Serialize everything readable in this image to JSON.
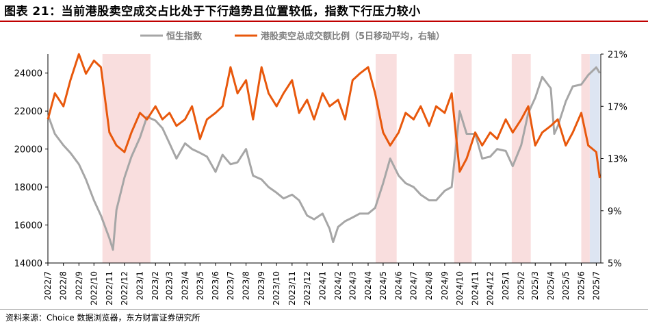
{
  "title": "图表 21：当前港股卖空成交占比处于下行趋势且位置较低，指数下行压力较小",
  "source": "资料来源：Choice 数据浏览器，东方财富证券研究所",
  "colors": {
    "hsi": "#a6a6a6",
    "short_ratio": "#e8580c",
    "highlight_pink": "#f9dede",
    "highlight_blue": "#dde5f2",
    "title_rule": "#c00000"
  },
  "chart_data": {
    "type": "line",
    "title": "",
    "xlabel": "",
    "ylabel": "",
    "ylabel_right": "",
    "legend_position": "top",
    "grid": false,
    "ylim": [
      14000,
      25000
    ],
    "ylim_right": [
      0.05,
      0.21
    ],
    "yticks": [
      14000,
      16000,
      18000,
      20000,
      22000,
      24000
    ],
    "yticks_right": [
      "5%",
      "9%",
      "13%",
      "17%",
      "21%"
    ],
    "yticks_right_values": [
      0.05,
      0.09,
      0.13,
      0.17,
      0.21
    ],
    "x_tick_labels": [
      "2022/7",
      "2022/8",
      "2022/9",
      "2022/10",
      "2022/11",
      "2022/12",
      "2023/1",
      "2023/2",
      "2023/3",
      "2023/4",
      "2023/5",
      "2023/6",
      "2023/7",
      "2023/8",
      "2023/9",
      "2023/10",
      "2023/11",
      "2023/12",
      "2024/1",
      "2024/2",
      "2024/3",
      "2024/4",
      "2024/5",
      "2024/6",
      "2024/7",
      "2024/8",
      "2024/9",
      "2024/10",
      "2024/11",
      "2024/12",
      "2025/1",
      "2025/2",
      "2025/3",
      "2025/4",
      "2025/5",
      "2025/6",
      "2025/7"
    ],
    "x_start": "2022/7",
    "highlight_periods": [
      {
        "start": "2022/10/18",
        "end": "2023/1/22",
        "color": "pink"
      },
      {
        "start": "2024/4/16",
        "end": "2024/5/28",
        "color": "pink"
      },
      {
        "start": "2024/9/20",
        "end": "2024/10/25",
        "color": "pink"
      },
      {
        "start": "2025/1/13",
        "end": "2025/2/20",
        "color": "pink"
      },
      {
        "start": "2025/6/1",
        "end": "2025/6/18",
        "color": "pink"
      },
      {
        "start": "2025/6/18",
        "end": "2025/7/8",
        "color": "blue"
      }
    ],
    "series": [
      {
        "name": "恒生指数",
        "axis": "left",
        "x": [
          "2022/7/1",
          "2022/7/15",
          "2022/8/1",
          "2022/8/15",
          "2022/9/1",
          "2022/9/15",
          "2022/10/1",
          "2022/10/15",
          "2022/11/1",
          "2022/11/8",
          "2022/11/15",
          "2022/12/1",
          "2022/12/15",
          "2023/1/1",
          "2023/1/15",
          "2023/2/1",
          "2023/2/15",
          "2023/3/1",
          "2023/3/15",
          "2023/4/1",
          "2023/4/15",
          "2023/5/1",
          "2023/5/15",
          "2023/6/1",
          "2023/6/15",
          "2023/7/1",
          "2023/7/15",
          "2023/8/1",
          "2023/8/15",
          "2023/9/1",
          "2023/9/15",
          "2023/10/1",
          "2023/10/15",
          "2023/11/1",
          "2023/11/15",
          "2023/12/1",
          "2023/12/15",
          "2024/1/1",
          "2024/1/15",
          "2024/1/22",
          "2024/2/1",
          "2024/2/15",
          "2024/3/1",
          "2024/3/15",
          "2024/4/1",
          "2024/4/15",
          "2024/5/1",
          "2024/5/15",
          "2024/6/1",
          "2024/6/15",
          "2024/7/1",
          "2024/7/15",
          "2024/8/1",
          "2024/8/15",
          "2024/9/1",
          "2024/9/15",
          "2024/10/1",
          "2024/10/15",
          "2024/11/1",
          "2024/11/15",
          "2024/12/1",
          "2024/12/15",
          "2025/1/1",
          "2025/1/15",
          "2025/2/1",
          "2025/2/15",
          "2025/3/1",
          "2025/3/15",
          "2025/4/1",
          "2025/4/8",
          "2025/4/15",
          "2025/5/1",
          "2025/5/15",
          "2025/6/1",
          "2025/6/15",
          "2025/7/1",
          "2025/7/8"
        ],
        "values": [
          21800,
          20800,
          20200,
          19800,
          19200,
          18400,
          17300,
          16500,
          15300,
          14700,
          16800,
          18500,
          19600,
          20600,
          21700,
          21500,
          21100,
          20300,
          19500,
          20300,
          20000,
          19800,
          19600,
          18800,
          19700,
          19200,
          19300,
          20000,
          18600,
          18400,
          18000,
          17700,
          17400,
          17600,
          17300,
          16500,
          16300,
          16600,
          15800,
          15100,
          15900,
          16200,
          16400,
          16600,
          16600,
          16900,
          18200,
          19500,
          18600,
          18200,
          18000,
          17600,
          17300,
          17300,
          17800,
          18000,
          22000,
          20800,
          20800,
          19500,
          19600,
          20000,
          19900,
          19100,
          20200,
          21900,
          22700,
          23800,
          23200,
          20800,
          21200,
          22500,
          23300,
          23400,
          23900,
          24300,
          24000
        ]
      },
      {
        "name": "港股卖空总成交额比例（5日移动平均，右轴）",
        "axis": "right",
        "x": [
          "2022/7/1",
          "2022/7/15",
          "2022/8/1",
          "2022/8/15",
          "2022/9/1",
          "2022/9/15",
          "2022/10/1",
          "2022/10/15",
          "2022/11/1",
          "2022/11/15",
          "2022/12/1",
          "2022/12/15",
          "2023/1/1",
          "2023/1/15",
          "2023/2/1",
          "2023/2/15",
          "2023/3/1",
          "2023/3/15",
          "2023/4/1",
          "2023/4/15",
          "2023/5/1",
          "2023/5/15",
          "2023/6/1",
          "2023/6/15",
          "2023/7/1",
          "2023/7/15",
          "2023/8/1",
          "2023/8/15",
          "2023/9/1",
          "2023/9/15",
          "2023/10/1",
          "2023/10/15",
          "2023/11/1",
          "2023/11/15",
          "2023/12/1",
          "2023/12/15",
          "2024/1/1",
          "2024/1/15",
          "2024/2/1",
          "2024/2/15",
          "2024/3/1",
          "2024/3/15",
          "2024/4/1",
          "2024/4/15",
          "2024/5/1",
          "2024/5/15",
          "2024/6/1",
          "2024/6/15",
          "2024/7/1",
          "2024/7/15",
          "2024/8/1",
          "2024/8/15",
          "2024/9/1",
          "2024/9/15",
          "2024/10/1",
          "2024/10/15",
          "2024/11/1",
          "2024/11/15",
          "2024/12/1",
          "2024/12/15",
          "2025/1/1",
          "2025/1/15",
          "2025/2/1",
          "2025/2/15",
          "2025/3/1",
          "2025/3/15",
          "2025/4/1",
          "2025/4/15",
          "2025/5/1",
          "2025/5/15",
          "2025/6/1",
          "2025/6/15",
          "2025/7/1",
          "2025/7/8"
        ],
        "values": [
          0.16,
          0.18,
          0.17,
          0.19,
          0.21,
          0.195,
          0.205,
          0.2,
          0.15,
          0.14,
          0.135,
          0.15,
          0.165,
          0.16,
          0.17,
          0.16,
          0.165,
          0.155,
          0.16,
          0.17,
          0.145,
          0.16,
          0.165,
          0.17,
          0.2,
          0.18,
          0.19,
          0.16,
          0.2,
          0.18,
          0.17,
          0.18,
          0.19,
          0.165,
          0.175,
          0.16,
          0.18,
          0.17,
          0.175,
          0.16,
          0.19,
          0.195,
          0.2,
          0.18,
          0.15,
          0.14,
          0.15,
          0.165,
          0.16,
          0.17,
          0.155,
          0.17,
          0.165,
          0.18,
          0.12,
          0.13,
          0.15,
          0.14,
          0.15,
          0.145,
          0.16,
          0.15,
          0.16,
          0.17,
          0.14,
          0.15,
          0.155,
          0.16,
          0.14,
          0.15,
          0.165,
          0.14,
          0.135,
          0.115
        ]
      }
    ]
  }
}
